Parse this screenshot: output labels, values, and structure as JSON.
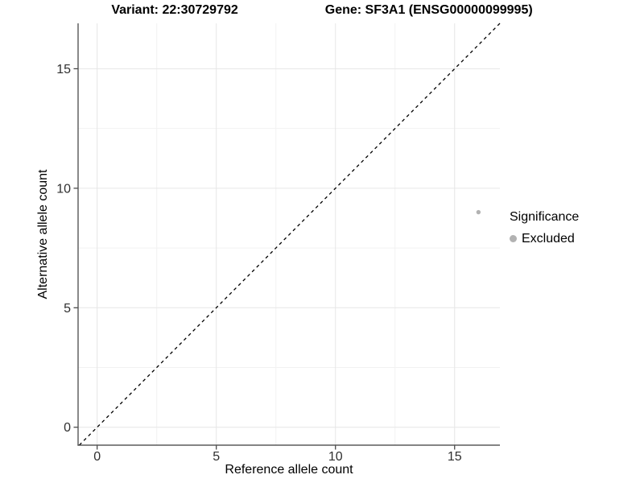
{
  "title": {
    "variant": "Variant: 22:30729792",
    "gene": "Gene: SF3A1 (ENSG00000099995)"
  },
  "chart_data": {
    "type": "scatter",
    "xlabel": "Reference allele count",
    "ylabel": "Alternative allele count",
    "xlim": [
      -0.8,
      16.9
    ],
    "ylim": [
      -0.75,
      16.9
    ],
    "x_major_ticks": [
      0,
      5,
      10,
      15
    ],
    "y_major_ticks": [
      0,
      5,
      10,
      15
    ],
    "x_minor_ticks": [
      2.5,
      7.5,
      12.5
    ],
    "y_minor_ticks": [
      2.5,
      7.5,
      12.5
    ],
    "grid": true,
    "points": [
      {
        "x": 16,
        "y": 9,
        "series": "Excluded"
      }
    ],
    "identity_line": {
      "slope": 1,
      "intercept": 0,
      "style": "dashed"
    },
    "legend": {
      "title": "Significance",
      "position": "right",
      "items": [
        {
          "label": "Excluded",
          "color": "#b2b2b2"
        }
      ]
    },
    "colors": {
      "point": "#b2b2b2",
      "axis": "#3b3b3b",
      "tick_label": "#2f2f2f",
      "grid_major": "#e6e6e6",
      "grid_minor": "#f2f2f2",
      "dashed_line": "#000000",
      "background": "#ffffff"
    }
  }
}
